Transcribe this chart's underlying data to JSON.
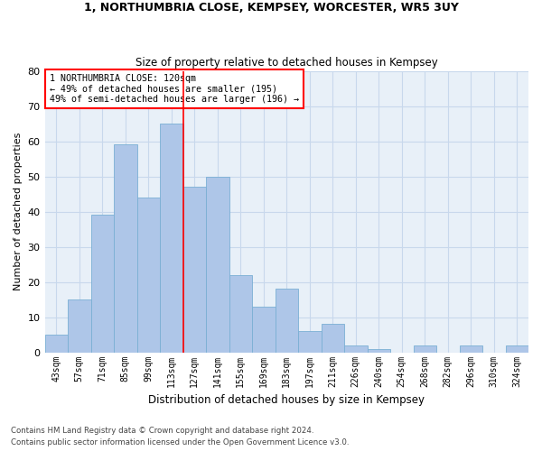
{
  "title1": "1, NORTHUMBRIA CLOSE, KEMPSEY, WORCESTER, WR5 3UY",
  "title2": "Size of property relative to detached houses in Kempsey",
  "xlabel": "Distribution of detached houses by size in Kempsey",
  "ylabel": "Number of detached properties",
  "footnote1": "Contains HM Land Registry data © Crown copyright and database right 2024.",
  "footnote2": "Contains public sector information licensed under the Open Government Licence v3.0.",
  "bin_labels": [
    "43sqm",
    "57sqm",
    "71sqm",
    "85sqm",
    "99sqm",
    "113sqm",
    "127sqm",
    "141sqm",
    "155sqm",
    "169sqm",
    "183sqm",
    "197sqm",
    "211sqm",
    "226sqm",
    "240sqm",
    "254sqm",
    "268sqm",
    "282sqm",
    "296sqm",
    "310sqm",
    "324sqm"
  ],
  "bar_heights": [
    5,
    15,
    39,
    59,
    44,
    65,
    47,
    50,
    22,
    13,
    18,
    6,
    8,
    2,
    1,
    0,
    2,
    0,
    2,
    0,
    2
  ],
  "bar_color": "#aec6e8",
  "bar_edge_color": "#7aafd4",
  "grid_color": "#c8d8ec",
  "background_color": "#e8f0f8",
  "property_line_bin": 5.5,
  "annotation_text": "1 NORTHUMBRIA CLOSE: 120sqm\n← 49% of detached houses are smaller (195)\n49% of semi-detached houses are larger (196) →",
  "annotation_box_color": "white",
  "annotation_border_color": "red",
  "vline_color": "red",
  "ylim": [
    0,
    80
  ],
  "yticks": [
    0,
    10,
    20,
    30,
    40,
    50,
    60,
    70,
    80
  ],
  "xlim": [
    -0.5,
    20.5
  ]
}
